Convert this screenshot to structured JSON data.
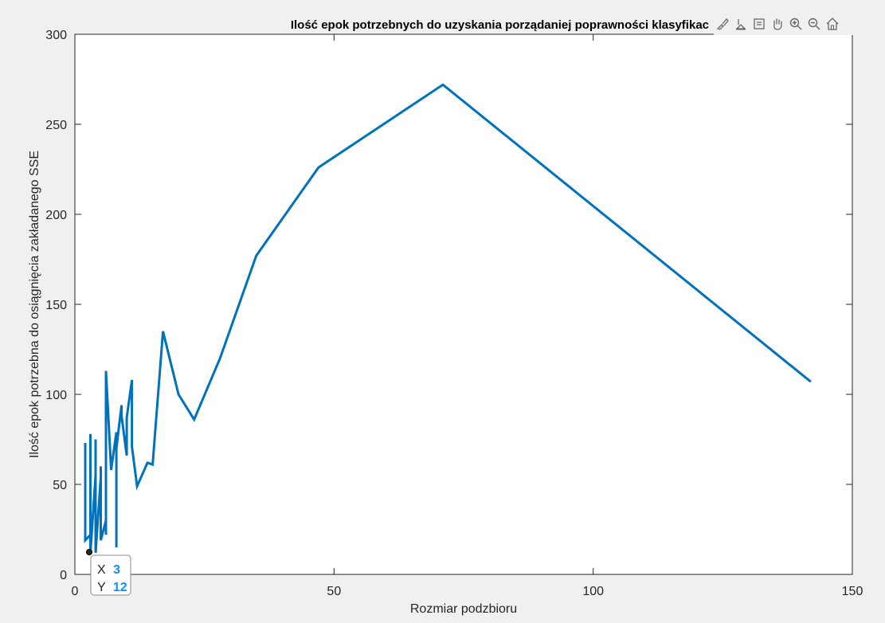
{
  "toolbar": {
    "icons": [
      "brush-icon",
      "data-cursor-icon",
      "datatip-icon",
      "pan-hand-icon",
      "zoom-in-icon",
      "zoom-out-icon",
      "home-icon"
    ]
  },
  "datatip": {
    "x_label": "X",
    "x_value": "3",
    "y_label": "Y",
    "y_value": "12",
    "value_color": "#0096ff"
  },
  "chart_data": {
    "type": "line",
    "title": "Ilość epok potrzebnych do uzyskania porządaniej poprawności klasyfikac",
    "xlabel": "Rozmiar podzbioru",
    "ylabel": "Ilość epok potrzebna do osiągnięcia zakładanego SSE",
    "xlim": [
      0,
      150
    ],
    "ylim": [
      0,
      300
    ],
    "xticks": [
      0,
      50,
      100,
      150
    ],
    "yticks": [
      0,
      50,
      100,
      150,
      200,
      250,
      300
    ],
    "grid": false,
    "line_color": "#0072bd",
    "series": [
      {
        "x": [
          2,
          2,
          3,
          3,
          3,
          4,
          4,
          4,
          5,
          5,
          5,
          6,
          6,
          6,
          7,
          8,
          8,
          8,
          9,
          9,
          10,
          10,
          11,
          11,
          12,
          14,
          15,
          17,
          20,
          23,
          28,
          35,
          47,
          71,
          142
        ],
        "y": [
          73,
          19,
          22,
          78,
          12,
          55,
          75,
          12,
          54,
          60,
          19,
          30,
          22,
          113,
          58,
          79,
          15,
          70,
          94,
          88,
          66,
          87,
          108,
          71,
          49,
          62,
          61,
          135,
          100,
          86,
          120,
          177,
          226,
          272,
          107
        ]
      }
    ]
  }
}
